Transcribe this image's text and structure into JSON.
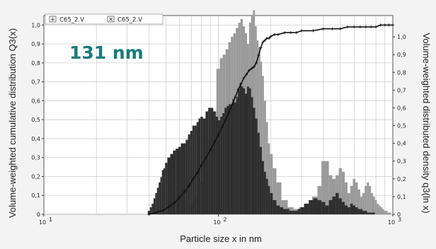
{
  "chart_data": {
    "type": "bar",
    "title": "",
    "annotation": "131 nm",
    "annotation_color": "#1a7a7a",
    "xlabel": "Particle size x in nm",
    "ylabel_left": "Volume-weighted cumulative distribution Q3(x)",
    "ylabel_right": "Volume-weighted distributed density q3(ln x)",
    "x_scale": "log",
    "xlim": [
      10,
      1000
    ],
    "x_ticks": [
      {
        "value": 10,
        "label": "10"
      },
      {
        "value": 100,
        "label": "10"
      },
      {
        "value": 1000,
        "label": "10"
      }
    ],
    "x_tick_exponents": [
      "1",
      "2",
      "3"
    ],
    "ylim_left": [
      0,
      1.05
    ],
    "ylim_right": [
      0,
      1.12
    ],
    "y_ticks_left": [
      "0",
      "0,1",
      "0,2",
      "0,3",
      "0,4",
      "0,5",
      "0,6",
      "0,7",
      "0,8",
      "0,9",
      "1,0"
    ],
    "y_ticks_right": [
      "0",
      "0,1",
      "0,2",
      "0,3",
      "0,4",
      "0,5",
      "0,6",
      "0,7",
      "0,8",
      "0,9",
      "1,0"
    ],
    "y_tick_values": [
      0,
      0.1,
      0.2,
      0.3,
      0.4,
      0.5,
      0.6,
      0.7,
      0.8,
      0.9,
      1.0
    ],
    "grid": true,
    "legend_position": "top-left",
    "legend": [
      {
        "marker": "+",
        "label": "C65_2.V"
      },
      {
        "marker": "×",
        "label": "C65_2.V"
      }
    ],
    "colors": {
      "background": "#f3f3f3",
      "plot_background": "#ffffff",
      "grid": "#cfcfcf",
      "dark_bars": "#2e2e2e",
      "light_bars": "#9a9a9a",
      "cumulative_line": "#111111"
    },
    "series": [
      {
        "name": "C65_2.V",
        "role": "density q3 (dark bars)",
        "x": [
          40,
          41,
          42,
          43,
          44,
          45,
          46,
          47,
          48,
          49,
          50,
          52,
          54,
          56,
          58,
          60,
          62,
          64,
          66,
          68,
          70,
          72,
          74,
          76,
          78,
          80,
          83,
          86,
          89,
          92,
          95,
          98,
          101,
          104,
          107,
          110,
          113,
          116,
          119,
          122,
          125,
          128,
          131,
          134,
          137,
          140,
          144,
          148,
          152,
          156,
          160,
          165,
          170,
          175,
          180,
          185,
          190,
          195,
          200,
          210,
          220,
          230,
          240,
          250,
          260,
          270,
          280,
          290,
          300,
          320,
          340,
          360,
          380,
          400,
          420,
          440,
          460,
          480,
          500,
          520,
          540,
          560,
          580,
          600,
          620,
          640,
          660,
          680,
          700,
          720,
          740,
          760,
          780,
          800,
          820,
          840,
          860,
          880,
          900,
          920,
          940,
          960,
          980
        ],
        "values": [
          0.02,
          0.04,
          0.06,
          0.09,
          0.12,
          0.15,
          0.18,
          0.21,
          0.25,
          0.26,
          0.29,
          0.32,
          0.34,
          0.36,
          0.37,
          0.38,
          0.4,
          0.4,
          0.42,
          0.45,
          0.47,
          0.5,
          0.5,
          0.52,
          0.54,
          0.55,
          0.54,
          0.58,
          0.6,
          0.6,
          0.58,
          0.55,
          0.53,
          0.55,
          0.57,
          0.6,
          0.61,
          0.62,
          0.62,
          0.65,
          0.63,
          0.66,
          0.7,
          0.74,
          0.72,
          0.71,
          0.68,
          0.72,
          0.71,
          0.66,
          0.6,
          0.54,
          0.46,
          0.38,
          0.3,
          0.24,
          0.2,
          0.16,
          0.12,
          0.08,
          0.05,
          0.04,
          0.03,
          0.03,
          0.02,
          0.02,
          0.02,
          0.03,
          0.04,
          0.06,
          0.08,
          0.09,
          0.08,
          0.07,
          0.05,
          0.08,
          0.1,
          0.12,
          0.09,
          0.07,
          0.05,
          0.04,
          0.06,
          0.05,
          0.04,
          0.03,
          0.03,
          0.02,
          0.02,
          0.01,
          0.01,
          0.01,
          0.01,
          0.0,
          0.0,
          0.0,
          0.0,
          0.0,
          0.0,
          0.0,
          0.0,
          0.0,
          0.0
        ]
      },
      {
        "name": "C65_2.V",
        "role": "density q3 (light bars)",
        "x": [
          70,
          75,
          80,
          85,
          90,
          95,
          100,
          104,
          108,
          112,
          116,
          120,
          124,
          128,
          132,
          136,
          140,
          144,
          148,
          152,
          156,
          160,
          164,
          168,
          172,
          176,
          180,
          185,
          190,
          195,
          200,
          210,
          220,
          240,
          260,
          280,
          300,
          330,
          360,
          380,
          400,
          420,
          440,
          460,
          480,
          500,
          520,
          540,
          560,
          580,
          600,
          620,
          640,
          660,
          680,
          700,
          720,
          740,
          760,
          780,
          800,
          820,
          840,
          860,
          880,
          900,
          920,
          940,
          960
        ],
        "values": [
          0.06,
          0.1,
          0.18,
          0.3,
          0.42,
          0.58,
          0.82,
          0.88,
          0.9,
          0.93,
          0.97,
          1.0,
          1.02,
          1.05,
          1.08,
          1.1,
          1.06,
          1.02,
          0.96,
          1.08,
          1.12,
          1.15,
          1.06,
          0.98,
          0.94,
          0.86,
          0.78,
          0.64,
          0.52,
          0.4,
          0.34,
          0.26,
          0.18,
          0.08,
          0.04,
          0.03,
          0.04,
          0.06,
          0.1,
          0.16,
          0.3,
          0.3,
          0.22,
          0.2,
          0.22,
          0.26,
          0.24,
          0.18,
          0.12,
          0.16,
          0.2,
          0.18,
          0.14,
          0.1,
          0.12,
          0.16,
          0.18,
          0.16,
          0.12,
          0.1,
          0.08,
          0.06,
          0.05,
          0.04,
          0.03,
          0.02,
          0.02,
          0.01,
          0.01
        ]
      },
      {
        "name": "C65_2.V",
        "role": "cumulative Q3",
        "x": [
          40,
          44,
          48,
          52,
          56,
          60,
          64,
          68,
          72,
          76,
          80,
          85,
          90,
          95,
          100,
          105,
          110,
          115,
          120,
          125,
          130,
          135,
          140,
          145,
          150,
          155,
          160,
          165,
          170,
          175,
          180,
          185,
          190,
          195,
          200,
          210,
          220,
          240,
          260,
          280,
          300,
          350,
          400,
          450,
          500,
          550,
          600,
          650,
          700,
          750,
          800,
          850,
          900,
          950,
          1000
        ],
        "values": [
          0.0,
          0.01,
          0.02,
          0.04,
          0.06,
          0.09,
          0.12,
          0.15,
          0.19,
          0.22,
          0.26,
          0.3,
          0.34,
          0.38,
          0.42,
          0.46,
          0.5,
          0.54,
          0.58,
          0.62,
          0.66,
          0.69,
          0.72,
          0.74,
          0.76,
          0.77,
          0.78,
          0.8,
          0.84,
          0.88,
          0.91,
          0.92,
          0.93,
          0.93,
          0.94,
          0.95,
          0.95,
          0.96,
          0.96,
          0.96,
          0.97,
          0.97,
          0.98,
          0.98,
          0.98,
          0.99,
          0.99,
          0.99,
          0.99,
          0.99,
          0.99,
          1.0,
          1.0,
          1.0,
          1.0
        ]
      }
    ]
  }
}
